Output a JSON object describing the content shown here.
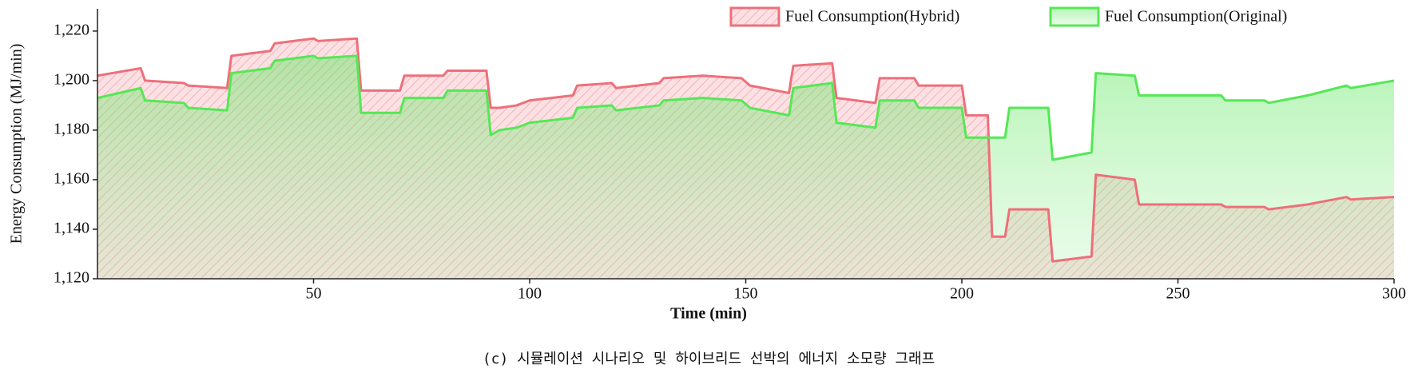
{
  "chart_data": {
    "type": "area",
    "ylabel": "Energy Consumption (MJ/min)",
    "xlabel": "Time (min)",
    "caption": "(c) 시뮬레이션 시나리오 및 하이브리드 선박의 에너지 소모량 그래프",
    "legend": "top-right",
    "xlim": [
      0,
      300
    ],
    "xticks": [
      50,
      100,
      150,
      200,
      250,
      300
    ],
    "ylim": [
      1120,
      1229
    ],
    "yticks": [
      {
        "value": 1120,
        "label": "1,120"
      },
      {
        "value": 1140,
        "label": "1,140"
      },
      {
        "value": 1160,
        "label": "1,160"
      },
      {
        "value": 1180,
        "label": "1,180"
      },
      {
        "value": 1200,
        "label": "1,200"
      },
      {
        "value": 1220,
        "label": "1,220"
      }
    ],
    "x": [
      0,
      10,
      11,
      20,
      21,
      30,
      31,
      40,
      41,
      50,
      51,
      60,
      61,
      70,
      71,
      80,
      81,
      90,
      91,
      93,
      97,
      100,
      110,
      111,
      119,
      120,
      130,
      131,
      140,
      149,
      151,
      160,
      161,
      170,
      171,
      180,
      181,
      189,
      190,
      200,
      201,
      206,
      207,
      210,
      211,
      220,
      221,
      230,
      231,
      240,
      241,
      250,
      260,
      261,
      270,
      271,
      280,
      289,
      290,
      300
    ],
    "series": [
      {
        "name": "Fuel Consumption(Hybrid)",
        "color": "#ee6f7a",
        "values": [
          1202,
          1205,
          1200,
          1199,
          1198,
          1197,
          1210,
          1212,
          1215,
          1217,
          1216,
          1217,
          1196,
          1196,
          1202,
          1202,
          1204,
          1204,
          1189,
          1189,
          1190,
          1192,
          1194,
          1198,
          1199,
          1197,
          1199,
          1201,
          1202,
          1201,
          1198,
          1195,
          1206,
          1207,
          1193,
          1191,
          1201,
          1201,
          1198,
          1198,
          1186,
          1186,
          1137,
          1137,
          1148,
          1148,
          1127,
          1129,
          1162,
          1160,
          1150,
          1150,
          1150,
          1149,
          1149,
          1148,
          1150,
          1153,
          1152,
          1153
        ]
      },
      {
        "name": "Fuel Consumption(Original)",
        "color": "#55e855",
        "values": [
          1193,
          1197,
          1192,
          1191,
          1189,
          1188,
          1203,
          1205,
          1208,
          1210,
          1209,
          1210,
          1187,
          1187,
          1193,
          1193,
          1196,
          1196,
          1178,
          1180,
          1181,
          1183,
          1185,
          1189,
          1190,
          1188,
          1190,
          1192,
          1193,
          1192,
          1189,
          1186,
          1197,
          1199,
          1183,
          1181,
          1192,
          1192,
          1189,
          1189,
          1177,
          1177,
          1177,
          1177,
          1189,
          1189,
          1168,
          1171,
          1203,
          1202,
          1194,
          1194,
          1194,
          1192,
          1192,
          1191,
          1194,
          1198,
          1197,
          1200
        ]
      }
    ]
  }
}
